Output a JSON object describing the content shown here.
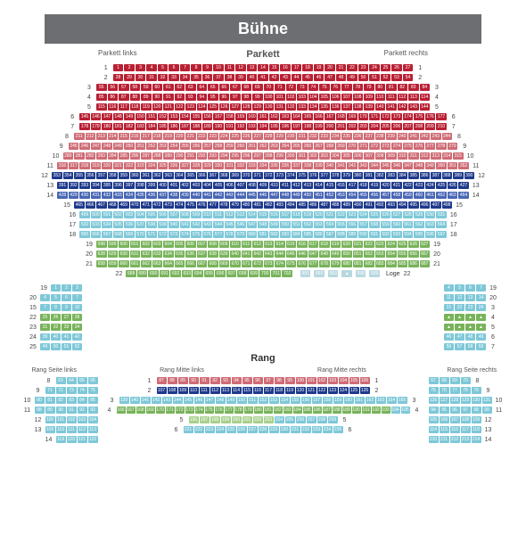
{
  "title": "Bühne",
  "labels": {
    "parkett": "Parkett",
    "parkett_links": "Parkett links",
    "parkett_rechts": "Parkett rechts",
    "rang": "Rang",
    "rang_mitte_links": "Rang Mitte links",
    "rang_mitte_rechts": "Rang Mitte rechts",
    "rang_seite_links": "Rang Seite links",
    "rang_seite_rechts": "Rang Seite rechts",
    "loge": "Loge"
  },
  "colors": {
    "stage_bg": "#6d6e71",
    "red": "#b92033",
    "red_light": "#cf6b75",
    "blue": "#1f3a8c",
    "blue_mid": "#4a67b5",
    "cyan": "#7ec8d8",
    "green": "#78b35a",
    "green_light": "#a8d08d",
    "loge": "#b8d8e0"
  },
  "seat_width": 11.5,
  "parkett_rows": [
    {
      "n": 1,
      "start": 1,
      "count": 27,
      "color": "red"
    },
    {
      "n": 2,
      "start": 28,
      "count": 27,
      "color": "red"
    },
    {
      "n": 3,
      "start": 55,
      "count": 30,
      "color": "red"
    },
    {
      "n": 4,
      "start": 85,
      "count": 30,
      "color": "red"
    },
    {
      "n": 5,
      "start": 115,
      "count": 30,
      "color": "red"
    },
    {
      "n": 6,
      "start": 145,
      "count": 33,
      "color": "red"
    },
    {
      "n": 7,
      "start": 178,
      "count": 33,
      "color": "red"
    },
    {
      "n": 8,
      "start": 211,
      "count": 34,
      "color": "red_light"
    },
    {
      "n": 9,
      "start": 245,
      "count": 35,
      "color": "red_light"
    },
    {
      "n": 10,
      "start": 280,
      "count": 36,
      "color": "red_light"
    },
    {
      "n": 11,
      "start": 316,
      "count": 37,
      "color": "red_light"
    },
    {
      "n": 12,
      "start": 353,
      "count": 38,
      "color": "blue"
    },
    {
      "n": 13,
      "start": 391,
      "count": 37,
      "color": "blue"
    },
    {
      "n": 14,
      "start": 428,
      "count": 37,
      "color": "blue_mid"
    },
    {
      "n": 15,
      "start": 465,
      "count": 34,
      "color": "blue"
    },
    {
      "n": 16,
      "start": 499,
      "count": 33,
      "color": "cyan"
    },
    {
      "n": 17,
      "start": 532,
      "count": 33,
      "color": "cyan"
    },
    {
      "n": 18,
      "start": 565,
      "count": 33,
      "color": "cyan"
    },
    {
      "n": 19,
      "start": 598,
      "count": 30,
      "color": "green"
    },
    {
      "n": 20,
      "start": 628,
      "count": 30,
      "color": "green"
    },
    {
      "n": 21,
      "start": 658,
      "count": 30,
      "color": "green"
    },
    {
      "n": 22,
      "start": 688,
      "count": 15,
      "color": "green"
    }
  ],
  "loge_row": {
    "n": 22,
    "seats": [
      "991",
      "992",
      "993",
      "▲",
      "998",
      "999"
    ],
    "color": "loge"
  },
  "side_left": [
    {
      "n": 19,
      "start": 1,
      "count": 3,
      "color": "cyan"
    },
    {
      "n": 20,
      "start": 4,
      "count": 4,
      "color": "cyan"
    },
    {
      "n": 21,
      "start": 7,
      "count": 4,
      "rn_lbl": "3",
      "rn_left": "15",
      "color": "cyan"
    },
    {
      "n": 22,
      "start": 25,
      "count": 4,
      "rn_lbl": "4",
      "color": "green"
    },
    {
      "n": 23,
      "start": 31,
      "count": 4,
      "rn_lbl": "5",
      "color": "green"
    },
    {
      "n": 24,
      "start": 39,
      "count": 4,
      "rn_lbl": "6",
      "color": "cyan"
    },
    {
      "n": 25,
      "start": 49,
      "count": 4,
      "rn_lbl": "7",
      "color": "cyan"
    }
  ],
  "side_right": [
    {
      "n": 19,
      "start": 4,
      "count": 4,
      "color": "cyan"
    },
    {
      "n": 20,
      "start": 11,
      "count": 4,
      "color": "cyan"
    },
    {
      "n": 21,
      "start": 21,
      "count": 4,
      "rn_lbl": "3",
      "color": "cyan"
    },
    {
      "n": 22,
      "seats": [
        "▲",
        "▲",
        "▲",
        "▲"
      ],
      "rn_lbl": "4",
      "color": "green"
    },
    {
      "n": 23,
      "seats": [
        "▲",
        "▲",
        "▲",
        "▲"
      ],
      "rn_lbl": "5",
      "color": "green"
    },
    {
      "n": 24,
      "start": 46,
      "count": 4,
      "rn_lbl": "6",
      "color": "cyan"
    },
    {
      "n": 25,
      "start": 56,
      "count": 4,
      "rn_lbl": "7",
      "color": "cyan"
    }
  ],
  "rang_side_left": [
    {
      "n": 8,
      "start": 63,
      "count": 4,
      "color": "cyan"
    },
    {
      "n": 9,
      "start": 71,
      "count": 5,
      "color": "cyan"
    },
    {
      "n": 10,
      "start": 80,
      "count": 6,
      "color": "cyan"
    },
    {
      "n": 11,
      "start": 88,
      "count": 6,
      "color": "cyan"
    },
    {
      "n": 12,
      "start": 100,
      "count": 5,
      "color": "cyan"
    },
    {
      "n": 13,
      "start": 109,
      "count": 5,
      "color": "cyan"
    },
    {
      "n": 14,
      "start": 119,
      "count": 4,
      "color": "cyan"
    }
  ],
  "rang_side_right": [
    {
      "n": 8,
      "start": 67,
      "count": 4,
      "color": "cyan"
    },
    {
      "n": 9,
      "start": 75,
      "count": 5,
      "color": "cyan"
    },
    {
      "n": 10,
      "start": 126,
      "count": 6,
      "color": "cyan"
    },
    {
      "n": 11,
      "start": 94,
      "count": 6,
      "color": "cyan"
    },
    {
      "n": 12,
      "start": 105,
      "count": 5,
      "color": "cyan"
    },
    {
      "n": 13,
      "start": 114,
      "count": 5,
      "color": "cyan"
    },
    {
      "n": 14,
      "start": 210,
      "count": 5,
      "color": "cyan"
    }
  ],
  "rang_mitte": [
    {
      "n": 1,
      "start": 87,
      "count": 20,
      "color": "red_light"
    },
    {
      "n": 2,
      "start": 107,
      "count": 20,
      "color": "blue"
    },
    {
      "n": 3,
      "start": 139,
      "count": 27,
      "color": "cyan"
    },
    {
      "n": 4,
      "start": 166,
      "count": 30,
      "color": "green",
      "accent_right": 2,
      "accent_color": "cyan"
    },
    {
      "n": 5,
      "start": 196,
      "count": 14,
      "color": "green_light",
      "accent_right": 6,
      "accent_color": "cyan"
    },
    {
      "n": 6,
      "start": 221,
      "count": 15,
      "color": "cyan"
    }
  ]
}
